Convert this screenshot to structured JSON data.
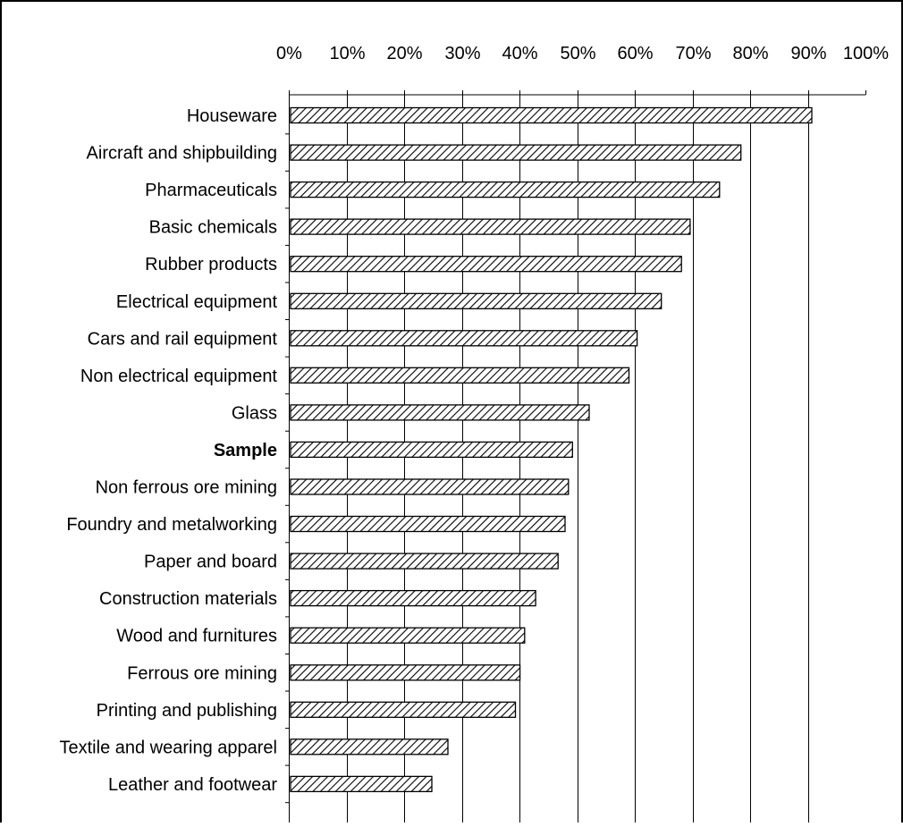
{
  "chart_data": {
    "type": "bar",
    "orientation": "horizontal",
    "title": "",
    "xlabel": "",
    "ylabel": "",
    "xlim": [
      0,
      100
    ],
    "x_ticks": [
      "0%",
      "10%",
      "20%",
      "30%",
      "40%",
      "50%",
      "60%",
      "70%",
      "80%",
      "90%",
      "100%"
    ],
    "x_axis_position": "top",
    "grid": "vertical",
    "legend": "none",
    "bar_pattern": "diagonal-hatch",
    "bar_color": "#000000",
    "highlighted_category": "Sample",
    "categories": [
      "Houseware",
      "Aircraft and shipbuilding",
      "Pharmaceuticals",
      "Basic chemicals",
      "Rubber products",
      "Electrical equipment",
      "Cars and rail equipment",
      "Non electrical equipment",
      "Glass",
      "Sample",
      "Non ferrous ore mining",
      "Foundry and metalworking",
      "Paper and board",
      "Construction materials",
      "Wood and furnitures",
      "Ferrous ore mining",
      "Printing and publishing",
      "Textile and wearing apparel",
      "Leather and footwear"
    ],
    "values": [
      90.7,
      78.4,
      74.7,
      69.6,
      68.1,
      64.6,
      60.4,
      59.0,
      52.1,
      49.2,
      48.5,
      47.9,
      46.7,
      42.8,
      40.9,
      40.1,
      39.3,
      27.6,
      24.8
    ]
  }
}
